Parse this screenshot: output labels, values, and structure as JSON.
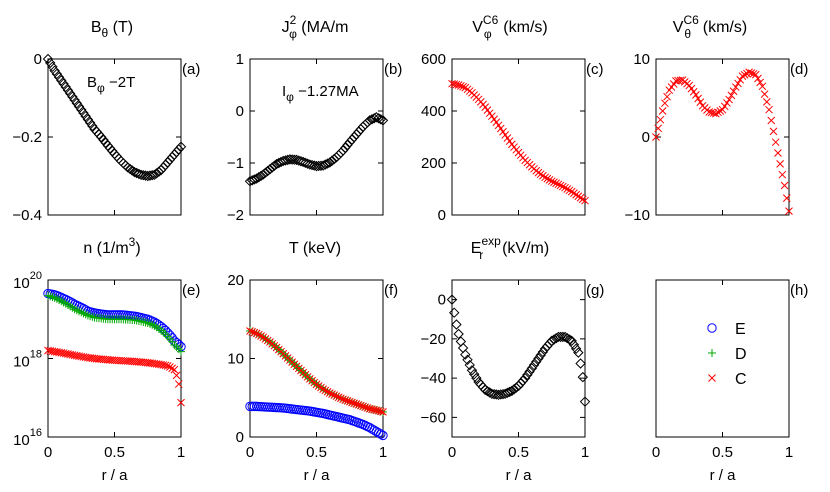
{
  "chart_data": [
    {
      "type": "scatter",
      "panel": "(a)",
      "title": {
        "base": "B",
        "sub": "θ",
        "sup": "",
        "unit": " (T)"
      },
      "annotation": {
        "base": "B",
        "sub": "φ",
        "value": " −2T"
      },
      "xlim": [
        0,
        1
      ],
      "ylim": [
        -0.4,
        0
      ],
      "xticks": [],
      "xticklabels": [],
      "yticks": [
        0,
        -0.2,
        -0.4
      ],
      "yticklabels": [
        "0",
        "−0.2",
        "−0.4"
      ],
      "series": [
        {
          "name": "Bθ",
          "marker": "diamond",
          "color": "#000000",
          "x": [
            0,
            0.05,
            0.1,
            0.15,
            0.2,
            0.25,
            0.3,
            0.35,
            0.4,
            0.45,
            0.5,
            0.55,
            0.6,
            0.65,
            0.7,
            0.75,
            0.8,
            0.85,
            0.9,
            0.95,
            1.0
          ],
          "y": [
            0,
            -0.03,
            -0.055,
            -0.08,
            -0.105,
            -0.13,
            -0.155,
            -0.18,
            -0.2,
            -0.222,
            -0.243,
            -0.262,
            -0.278,
            -0.29,
            -0.297,
            -0.3,
            -0.297,
            -0.285,
            -0.265,
            -0.245,
            -0.225
          ]
        }
      ]
    },
    {
      "type": "scatter",
      "panel": "(b)",
      "title": {
        "base": "J",
        "sub": "φ",
        "sup": "2",
        "unit": " (MA/m",
        "unit_end": ")"
      },
      "annotation": {
        "base": "I",
        "sub": "φ",
        "value": " −1.27MA"
      },
      "xlim": [
        0,
        1
      ],
      "ylim": [
        -2,
        1
      ],
      "xticks": [],
      "xticklabels": [],
      "yticks": [
        1,
        0,
        -1,
        -2
      ],
      "yticklabels": [
        "1",
        "0",
        "−1",
        "−2"
      ],
      "series": [
        {
          "name": "Jφ",
          "marker": "diamond",
          "color": "#000000",
          "x": [
            0,
            0.05,
            0.1,
            0.15,
            0.2,
            0.25,
            0.3,
            0.35,
            0.4,
            0.45,
            0.5,
            0.55,
            0.6,
            0.65,
            0.7,
            0.75,
            0.8,
            0.85,
            0.9,
            0.95,
            1.0
          ],
          "y": [
            -1.35,
            -1.3,
            -1.22,
            -1.12,
            -1.02,
            -0.96,
            -0.93,
            -0.94,
            -0.98,
            -1.03,
            -1.06,
            -1.05,
            -0.99,
            -0.89,
            -0.76,
            -0.6,
            -0.45,
            -0.3,
            -0.18,
            -0.12,
            -0.18
          ]
        }
      ]
    },
    {
      "type": "scatter",
      "panel": "(c)",
      "title": {
        "base": "V",
        "sub": "φ",
        "sup": "C6",
        "unit": " (km/s)"
      },
      "xlim": [
        0,
        1
      ],
      "ylim": [
        0,
        600
      ],
      "xticks": [],
      "xticklabels": [],
      "yticks": [
        0,
        200,
        400,
        600
      ],
      "yticklabels": [
        "0",
        "200",
        "400",
        "600"
      ],
      "series": [
        {
          "name": "Vφ C6",
          "marker": "x",
          "color": "#ff0000",
          "x": [
            0,
            0.05,
            0.1,
            0.15,
            0.2,
            0.25,
            0.3,
            0.35,
            0.4,
            0.45,
            0.5,
            0.55,
            0.6,
            0.65,
            0.7,
            0.75,
            0.8,
            0.85,
            0.9,
            0.95,
            1.0
          ],
          "y": [
            505,
            500,
            490,
            470,
            445,
            415,
            380,
            345,
            308,
            272,
            240,
            210,
            185,
            163,
            145,
            130,
            118,
            105,
            90,
            72,
            55
          ]
        }
      ]
    },
    {
      "type": "scatter",
      "panel": "(d)",
      "title": {
        "base": "V",
        "sub": "θ",
        "sup": "C6",
        "unit": " (km/s)"
      },
      "xlim": [
        0,
        1
      ],
      "ylim": [
        -10,
        10
      ],
      "xticks": [],
      "xticklabels": [],
      "yticks": [
        10,
        0,
        -10
      ],
      "yticklabels": [
        "10",
        "0",
        "−10"
      ],
      "series": [
        {
          "name": "Vθ C6",
          "marker": "x",
          "color": "#ff0000",
          "x": [
            0,
            0.03,
            0.06,
            0.1,
            0.15,
            0.2,
            0.25,
            0.3,
            0.35,
            0.4,
            0.45,
            0.5,
            0.55,
            0.6,
            0.65,
            0.7,
            0.75,
            0.8,
            0.85,
            0.88,
            0.91,
            0.94,
            0.97,
            1.0
          ],
          "y": [
            0,
            2,
            4,
            6,
            7.2,
            7.3,
            6.6,
            5.4,
            4.0,
            3.2,
            3.0,
            3.5,
            4.8,
            6.4,
            7.8,
            8.3,
            8.0,
            6.5,
            3.5,
            1.0,
            -1.5,
            -4.0,
            -6.5,
            -9.5
          ]
        }
      ]
    },
    {
      "type": "scatter",
      "panel": "(e)",
      "title": {
        "base": "n (1/m",
        "sub": "",
        "sup": "3",
        "unit": "",
        "unit_end": ")"
      },
      "yscale": "log",
      "xlim": [
        0,
        1
      ],
      "ylim": [
        1e+16,
        1e+20
      ],
      "xticks": [
        0,
        0.5,
        1
      ],
      "xticklabels": [
        "0",
        "0.5",
        "1"
      ],
      "yticks": [
        1e+20,
        1e+18,
        1e+16
      ],
      "ytick_base": "10",
      "ytick_exponents": [
        "20",
        "18",
        "16"
      ],
      "series": [
        {
          "name": "E",
          "marker": "circle",
          "color": "#0000ff",
          "x": [
            0,
            0.05,
            0.1,
            0.15,
            0.2,
            0.25,
            0.3,
            0.35,
            0.4,
            0.45,
            0.5,
            0.55,
            0.6,
            0.65,
            0.7,
            0.75,
            0.8,
            0.85,
            0.9,
            0.95,
            1.0
          ],
          "y": [
            4.5e+19,
            4.2e+19,
            3.6e+19,
            3e+19,
            2.4e+19,
            2e+19,
            1.6e+19,
            1.45e+19,
            1.35e+19,
            1.3e+19,
            1.3e+19,
            1.3e+19,
            1.25e+19,
            1.2e+19,
            1.1e+19,
            1e+19,
            8.5e+18,
            6.5e+18,
            4.5e+18,
            2.8e+18,
            2e+18
          ]
        },
        {
          "name": "D",
          "marker": "plus",
          "color": "#00aa00",
          "x": [
            0,
            0.05,
            0.1,
            0.15,
            0.2,
            0.25,
            0.3,
            0.35,
            0.4,
            0.45,
            0.5,
            0.55,
            0.6,
            0.65,
            0.7,
            0.75,
            0.8,
            0.85,
            0.9,
            0.95,
            1.0
          ],
          "y": [
            4e+19,
            3.5e+19,
            2.9e+19,
            2.3e+19,
            1.8e+19,
            1.5e+19,
            1.25e+19,
            1.1e+19,
            1.05e+19,
            1e+19,
            1e+19,
            1e+19,
            9.8e+18,
            9.5e+18,
            8.8e+18,
            8e+18,
            6.8e+18,
            5.2e+18,
            3.6e+18,
            2.2e+18,
            1.5e+18
          ]
        },
        {
          "name": "C",
          "marker": "x",
          "color": "#ff0000",
          "x": [
            0,
            0.05,
            0.1,
            0.15,
            0.2,
            0.25,
            0.3,
            0.35,
            0.4,
            0.45,
            0.5,
            0.55,
            0.6,
            0.65,
            0.7,
            0.75,
            0.8,
            0.85,
            0.9,
            0.95,
            1.0
          ],
          "y": [
            1.6e+18,
            1.5e+18,
            1.4e+18,
            1.3e+18,
            1.2e+18,
            1.12e+18,
            1.05e+18,
            1e+18,
            9.6e+17,
            9.3e+17,
            9e+17,
            8.8e+17,
            8.6e+17,
            8.4e+17,
            8.1e+17,
            7.8e+17,
            7.4e+17,
            7e+17,
            6.5e+17,
            5.2e+17,
            7.5e+16
          ]
        }
      ]
    },
    {
      "type": "scatter",
      "panel": "(f)",
      "title": {
        "base": "T (keV)",
        "sub": "",
        "sup": "",
        "unit": ""
      },
      "xlim": [
        0,
        1
      ],
      "ylim": [
        0,
        20
      ],
      "xticks": [
        0,
        0.5,
        1
      ],
      "xticklabels": [
        "0",
        "0.5",
        "1"
      ],
      "yticks": [
        20,
        10,
        0
      ],
      "yticklabels": [
        "20",
        "10",
        "0"
      ],
      "series": [
        {
          "name": "E",
          "marker": "circle",
          "color": "#0000ff",
          "x": [
            0,
            0.05,
            0.1,
            0.15,
            0.2,
            0.25,
            0.3,
            0.35,
            0.4,
            0.45,
            0.5,
            0.55,
            0.6,
            0.65,
            0.7,
            0.75,
            0.8,
            0.85,
            0.9,
            0.95,
            1.0
          ],
          "y": [
            3.9,
            3.9,
            3.85,
            3.8,
            3.75,
            3.7,
            3.6,
            3.5,
            3.4,
            3.3,
            3.15,
            3.0,
            2.8,
            2.6,
            2.4,
            2.2,
            1.9,
            1.6,
            1.2,
            0.7,
            0.2
          ]
        },
        {
          "name": "D",
          "marker": "plus",
          "color": "#00aa00",
          "x": [
            0,
            0.05,
            0.1,
            0.15,
            0.2,
            0.25,
            0.3,
            0.35,
            0.4,
            0.45,
            0.5,
            0.55,
            0.6,
            0.65,
            0.7,
            0.75,
            0.8,
            0.85,
            0.9,
            0.95,
            1.0
          ],
          "y": [
            13.5,
            13.2,
            12.7,
            12.1,
            11.4,
            10.6,
            9.8,
            9.0,
            8.2,
            7.4,
            6.7,
            6.1,
            5.6,
            5.2,
            4.8,
            4.5,
            4.2,
            3.9,
            3.6,
            3.4,
            3.2
          ]
        },
        {
          "name": "C",
          "marker": "x",
          "color": "#ff0000",
          "x": [
            0,
            0.05,
            0.1,
            0.15,
            0.2,
            0.25,
            0.3,
            0.35,
            0.4,
            0.45,
            0.5,
            0.55,
            0.6,
            0.65,
            0.7,
            0.75,
            0.8,
            0.85,
            0.9,
            0.95,
            1.0
          ],
          "y": [
            13.5,
            13.2,
            12.7,
            12.1,
            11.4,
            10.6,
            9.8,
            9.0,
            8.2,
            7.4,
            6.7,
            6.1,
            5.6,
            5.2,
            4.8,
            4.5,
            4.2,
            3.9,
            3.6,
            3.4,
            3.2
          ]
        }
      ]
    },
    {
      "type": "scatter",
      "panel": "(g)",
      "title": {
        "base": "E",
        "sub": "r",
        "sup": "exp",
        "unit": " (kV/m)"
      },
      "xlim": [
        0,
        1
      ],
      "ylim": [
        -70,
        10
      ],
      "xticks": [
        0,
        0.5,
        1
      ],
      "xticklabels": [
        "0",
        "0.5",
        "1"
      ],
      "yticks": [
        0,
        -20,
        -40,
        -60
      ],
      "yticklabels": [
        "0",
        "−20",
        "−40",
        "−60"
      ],
      "series": [
        {
          "name": "Er exp",
          "marker": "diamond",
          "color": "#000000",
          "x": [
            0,
            0.02,
            0.04,
            0.06,
            0.1,
            0.15,
            0.2,
            0.25,
            0.3,
            0.35,
            0.4,
            0.45,
            0.5,
            0.55,
            0.6,
            0.65,
            0.7,
            0.75,
            0.8,
            0.85,
            0.9,
            0.95,
            0.98,
            1.0
          ],
          "y": [
            0,
            -8,
            -15,
            -20,
            -28,
            -36,
            -42,
            -46,
            -48,
            -48.5,
            -48,
            -46.5,
            -44,
            -40,
            -35,
            -30,
            -25,
            -21,
            -19,
            -19,
            -21,
            -27,
            -37,
            -52
          ]
        }
      ]
    },
    {
      "type": "legend",
      "panel": "(h)",
      "xlim": [
        0,
        1
      ],
      "xticks": [
        0,
        0.5,
        1
      ],
      "xticklabels": [
        "0",
        "0.5",
        "1"
      ],
      "entries": [
        {
          "name": "E",
          "marker": "circle",
          "color": "#0000ff"
        },
        {
          "name": "D",
          "marker": "plus",
          "color": "#00aa00"
        },
        {
          "name": "C",
          "marker": "x",
          "color": "#ff0000"
        }
      ]
    }
  ],
  "xlabel": "r / a"
}
